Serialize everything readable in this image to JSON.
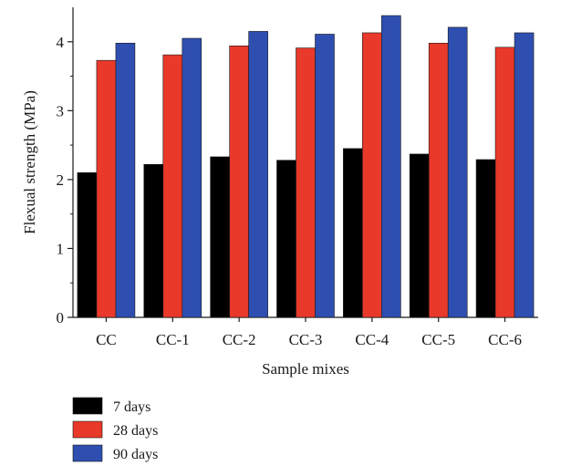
{
  "chart_data": {
    "type": "bar",
    "title": "",
    "xlabel": "Sample mixes",
    "ylabel": "Flexual strength (MPa)",
    "ylim": [
      0,
      4.5
    ],
    "yticks": [
      0,
      1,
      2,
      3,
      4
    ],
    "grid": false,
    "legend_position": "bottom-left",
    "categories": [
      "CC",
      "CC-1",
      "CC-2",
      "CC-3",
      "CC-4",
      "CC-5",
      "CC-6"
    ],
    "series": [
      {
        "name": "7 days",
        "color": "#000000",
        "values": [
          2.1,
          2.22,
          2.33,
          2.28,
          2.45,
          2.37,
          2.29
        ]
      },
      {
        "name": "28 days",
        "color": "#e8392a",
        "values": [
          3.73,
          3.81,
          3.94,
          3.91,
          4.13,
          3.98,
          3.92
        ]
      },
      {
        "name": "90 days",
        "color": "#2e4fb0",
        "values": [
          3.98,
          4.05,
          4.15,
          4.11,
          4.38,
          4.21,
          4.13
        ]
      }
    ]
  }
}
